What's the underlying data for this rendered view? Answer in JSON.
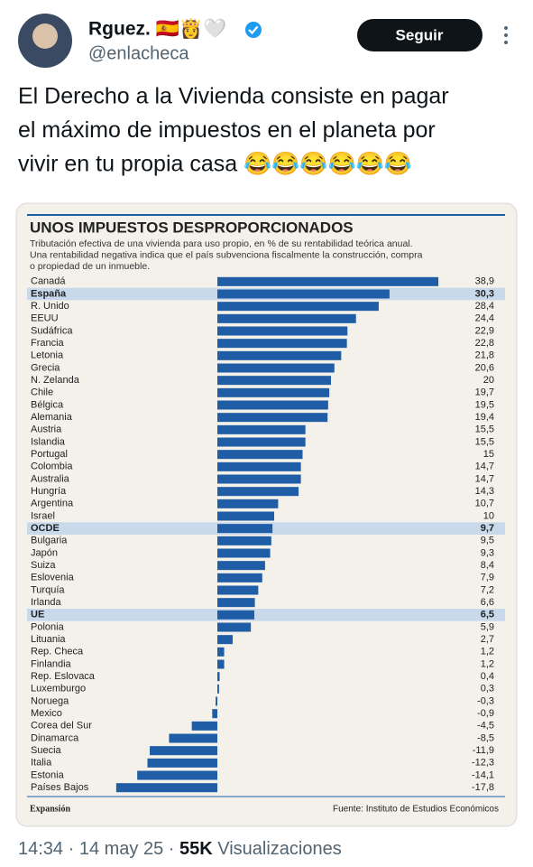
{
  "tweet": {
    "name": "Rguez. 🇪🇸👸🤍",
    "handle": "@enlacheca",
    "follow_button": "Seguir",
    "text_lines": [
      "El Derecho a la Vivienda consiste en pagar",
      "el máximo de impuestos en el planeta por",
      "vivir en tu propia casa 😂😂😂😂😂😂"
    ],
    "time": "14:34 · 14 may 25 · ",
    "views_count": "55K",
    "views_label": " Visualizaciones"
  },
  "chart_data": {
    "type": "barh",
    "title": "UNOS IMPUESTOS DESPROPORCIONADOS",
    "subtitle_lines": [
      "Tributación efectiva de una vivienda para uso propio, en % de su rentabilidad teórica anual.",
      "Una rentabilidad negativa indica que el país subvenciona fiscalmente la construcción, compra",
      "o propiedad de un inmueble."
    ],
    "categories": [
      "Canadá",
      "España",
      "R. Unido",
      "EEUU",
      "Sudáfrica",
      "Francia",
      "Letonia",
      "Grecia",
      "N. Zelanda",
      "Chile",
      "Bélgica",
      "Alemania",
      "Austria",
      "Islandia",
      "Portugal",
      "Colombia",
      "Australia",
      "Hungría",
      "Argentina",
      "Israel",
      "OCDE",
      "Bulgaria",
      "Japón",
      "Suiza",
      "Eslovenia",
      "Turquía",
      "Irlanda",
      "UE",
      "Polonia",
      "Lituania",
      "Rep. Checa",
      "Finlandia",
      "Rep. Eslovaca",
      "Luxemburgo",
      "Noruega",
      "Mexico",
      "Corea del Sur",
      "Dinamarca",
      "Suecia",
      "Italia",
      "Estonia",
      "Países Bajos"
    ],
    "values": [
      38.9,
      30.3,
      28.4,
      24.4,
      22.9,
      22.8,
      21.8,
      20.6,
      20,
      19.7,
      19.5,
      19.4,
      15.5,
      15.5,
      15,
      14.7,
      14.7,
      14.3,
      10.7,
      10,
      9.7,
      9.5,
      9.3,
      8.4,
      7.9,
      7.2,
      6.6,
      6.5,
      5.9,
      2.7,
      1.2,
      1.2,
      0.4,
      0.3,
      -0.3,
      -0.9,
      -4.5,
      -8.5,
      -11.9,
      -12.3,
      -14.1,
      -17.8
    ],
    "value_labels": [
      "38,9",
      "30,3",
      "28,4",
      "24,4",
      "22,9",
      "22,8",
      "21,8",
      "20,6",
      "20",
      "19,7",
      "19,5",
      "19,4",
      "15,5",
      "15,5",
      "15",
      "14,7",
      "14,7",
      "14,3",
      "10,7",
      "10",
      "9,7",
      "9,5",
      "9,3",
      "8,4",
      "7,9",
      "7,2",
      "6,6",
      "6,5",
      "5,9",
      "2,7",
      "1,2",
      "1,2",
      "0,4",
      "0,3",
      "-0,3",
      "-0,9",
      "-4,5",
      "-8,5",
      "-11,9",
      "-12,3",
      "-14,1",
      "-17,8"
    ],
    "highlight": [
      1,
      20,
      27
    ],
    "color": "#1f5da6",
    "highlight_color": "#c9d9ec",
    "xlim": [
      -20,
      40
    ],
    "brand": "Expansión",
    "source": "Fuente: Instituto de Estudios Económicos"
  }
}
